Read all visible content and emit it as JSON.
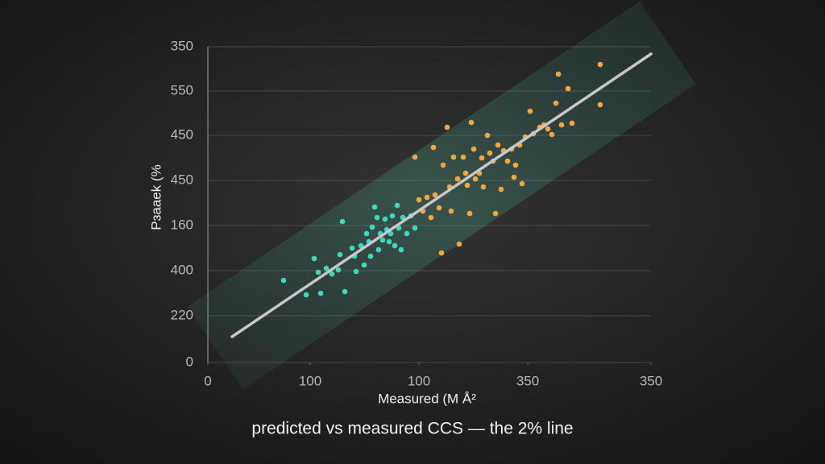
{
  "chart_data": {
    "type": "scatter",
    "title": "predicted vs measured CCS — the 2% line",
    "x_label": "Measured (M Å²",
    "y_label": "Pɜaaek (%",
    "xlim": [
      0,
      550
    ],
    "ylim": [
      0,
      392
    ],
    "xticks": [
      0,
      {
        "value": 127,
        "label": "100"
      },
      {
        "value": 262,
        "label": "100"
      },
      {
        "value": 397,
        "label": "350"
      },
      {
        "value": 550,
        "label": "350"
      }
    ],
    "yticks": [
      0,
      {
        "value": 58,
        "label": "220"
      },
      {
        "value": 114,
        "label": "400"
      },
      {
        "value": 170,
        "label": "160"
      },
      {
        "value": 226,
        "label": "450"
      },
      {
        "value": 282,
        "label": "450"
      },
      {
        "value": 337,
        "label": "550"
      },
      {
        "value": 392,
        "label": "350"
      }
    ],
    "grid": true,
    "series": [
      {
        "color": "#3fd8bd",
        "x": [
          94,
          122,
          140,
          132,
          137,
          147,
          154,
          164,
          167,
          170,
          162,
          179,
          182,
          184,
          190,
          194,
          197,
          200,
          202,
          204,
          207,
          210,
          212,
          214,
          217,
          220,
          222,
          225,
          227,
          229,
          232,
          235,
          237,
          240,
          242,
          247,
          252,
          257
        ],
        "values": [
          102,
          84,
          86,
          129,
          112,
          117,
          110,
          134,
          175,
          88,
          115,
          142,
          132,
          113,
          145,
          121,
          160,
          150,
          132,
          168,
          193,
          180,
          140,
          160,
          152,
          178,
          165,
          150,
          160,
          182,
          145,
          195,
          167,
          140,
          180,
          160,
          182,
          167
        ]
      },
      {
        "color": "#f3a640",
        "x": [
          257,
          262,
          267,
          272,
          277,
          280,
          282,
          287,
          290,
          292,
          297,
          300,
          302,
          305,
          310,
          312,
          317,
          320,
          322,
          325,
          327,
          330,
          332,
          337,
          340,
          342,
          347,
          350,
          354,
          357,
          360,
          364,
          367,
          372,
          377,
          380,
          382,
          387,
          390,
          394,
          400,
          404,
          412,
          417,
          422,
          427,
          432,
          435,
          439,
          447,
          452,
          487,
          487
        ],
        "values": [
          255,
          202,
          188,
          205,
          180,
          267,
          208,
          192,
          136,
          245,
          292,
          218,
          188,
          255,
          228,
          147,
          255,
          235,
          220,
          185,
          298,
          265,
          228,
          235,
          254,
          218,
          282,
          260,
          250,
          185,
          270,
          215,
          263,
          250,
          265,
          230,
          245,
          270,
          222,
          280,
          312,
          284,
          292,
          295,
          290,
          283,
          322,
          358,
          295,
          340,
          297,
          370,
          320
        ]
      }
    ],
    "fit": {
      "color": "#c8c8c8",
      "x": [
        30,
        550
      ],
      "y": [
        32,
        383
      ]
    }
  }
}
